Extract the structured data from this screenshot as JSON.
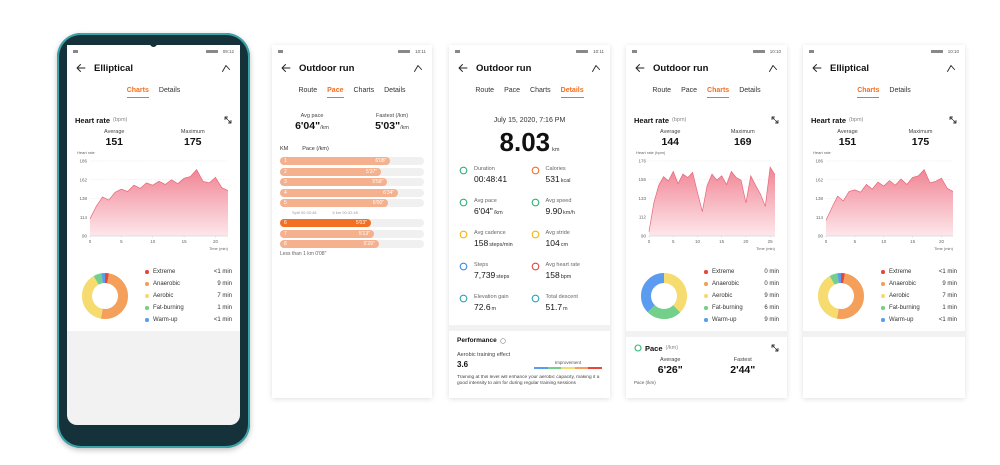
{
  "screens": [
    {
      "status_time": "09:12",
      "title": "Elliptical",
      "tabs": [
        "Charts",
        "Details"
      ],
      "active_tab": 0,
      "heart_rate": {
        "title": "Heart rate",
        "unit": "(bpm)",
        "avg_label": "Average",
        "avg": 151,
        "max_label": "Maximum",
        "max": 175,
        "y_title": "Heart rate",
        "x_title": "Time (min)",
        "ylim": [
          90,
          186
        ],
        "yticks": [
          90,
          114,
          138,
          162,
          186
        ],
        "xlim": [
          0,
          22
        ],
        "xticks": [
          0,
          5,
          10,
          15,
          20
        ],
        "x": [
          0,
          1,
          2,
          3,
          4,
          5,
          6,
          7,
          8,
          9,
          10,
          11,
          12,
          13,
          14,
          15,
          16,
          17,
          18,
          19,
          20,
          21,
          22
        ],
        "values": [
          112,
          128,
          140,
          136,
          146,
          150,
          147,
          155,
          151,
          158,
          155,
          160,
          156,
          162,
          157,
          164,
          166,
          175,
          160,
          158,
          165,
          152,
          148
        ]
      },
      "zones": [
        {
          "name": "Extreme",
          "label": "<1 min",
          "value": 0.5,
          "color": "#e8453c"
        },
        {
          "name": "Anaerobic",
          "label": "9 min",
          "value": 9,
          "color": "#f4a05a"
        },
        {
          "name": "Aerobic",
          "label": "7 min",
          "value": 7,
          "color": "#f6dc6e"
        },
        {
          "name": "Fat-burning",
          "label": "1 min",
          "value": 1,
          "color": "#72d08a"
        },
        {
          "name": "Warm-up",
          "label": "<1 min",
          "value": 0.5,
          "color": "#5b9cf0"
        }
      ]
    },
    {
      "status_time": "10:11",
      "title": "Outdoor run",
      "tabs": [
        "Route",
        "Pace",
        "Charts",
        "Details"
      ],
      "active_tab": 1,
      "summary": [
        {
          "label": "Avg pace",
          "value": "6'04\"",
          "unit": "/km"
        },
        {
          "label": "Fastest (/km)",
          "value": "5'03\"",
          "unit": "/km"
        }
      ],
      "pace_table": {
        "headers": [
          "KM",
          "Pace (/km)"
        ],
        "rows": [
          {
            "km": 1,
            "pace": "6'08\"",
            "seconds": 368
          },
          {
            "km": 2,
            "pace": "5'37\"",
            "seconds": 337
          },
          {
            "km": 3,
            "pace": "5'58\"",
            "seconds": 358
          },
          {
            "km": 4,
            "pace": "6'34\"",
            "seconds": 394
          },
          {
            "km": 5,
            "pace": "6'00\"",
            "seconds": 360
          }
        ],
        "split_note": [
          "Split 00:33:48",
          "6 km 00:32:48"
        ],
        "rows_after": [
          {
            "km": 6,
            "pace": "5'03\"",
            "seconds": 303
          },
          {
            "km": 7,
            "pace": "5'13\"",
            "seconds": 313
          },
          {
            "km": 8,
            "pace": "5'29\"",
            "seconds": 329
          }
        ],
        "footer": "Less than 1 km 0'08\""
      }
    },
    {
      "status_time": "10:11",
      "title": "Outdoor run",
      "tabs": [
        "Route",
        "Pace",
        "Charts",
        "Details"
      ],
      "active_tab": 3,
      "date": "July 15, 2020, 7:16 PM",
      "distance": 8.03,
      "distance_unit": "km",
      "metrics": [
        {
          "label": "Duration",
          "value": "00:48:41"
        },
        {
          "label": "Calories",
          "value": "531",
          "unit": "kcal"
        },
        {
          "label": "Avg pace",
          "value": "6'04\"",
          "unit": "/km"
        },
        {
          "label": "Avg speed",
          "value": "9.90",
          "unit": "km/h"
        },
        {
          "label": "Avg cadence",
          "value": "158",
          "unit": "steps/min"
        },
        {
          "label": "Avg stride",
          "value": "104",
          "unit": "cm"
        },
        {
          "label": "Steps",
          "value": "7,739",
          "unit": "steps"
        },
        {
          "label": "Avg heart rate",
          "value": "158",
          "unit": "bpm"
        },
        {
          "label": "Elevation gain",
          "value": "72.6",
          "unit": "m"
        },
        {
          "label": "Total descent",
          "value": "51.7",
          "unit": "m"
        }
      ],
      "performance": {
        "title": "Performance",
        "effect_label": "Aerobic training effect",
        "effect_value": "3.6",
        "level": "Improvement",
        "description": "Training at this level will enhance your aerobic capacity, making it a good intensity to aim for during regular training sessions"
      }
    },
    {
      "status_time": "10:10",
      "title": "Outdoor run",
      "tabs": [
        "Route",
        "Pace",
        "Charts",
        "Details"
      ],
      "active_tab": 2,
      "heart_rate": {
        "title": "Heart rate",
        "unit": "(bpm)",
        "avg_label": "Average",
        "avg": 144,
        "max_label": "Maximum",
        "max": 169,
        "y_title": "Heart rate (bpm)",
        "x_title": "Time (min)",
        "ylim": [
          90,
          176
        ],
        "yticks": [
          90,
          112,
          133,
          155,
          176
        ],
        "xlim": [
          0,
          26
        ],
        "xticks": [
          0,
          5,
          10,
          15,
          20,
          25
        ],
        "x": [
          0,
          1,
          2,
          3,
          4,
          5,
          6,
          7,
          8,
          9,
          10,
          11,
          12,
          13,
          14,
          15,
          16,
          17,
          18,
          19,
          20,
          21,
          22,
          23,
          24,
          25,
          26
        ],
        "values": [
          95,
          128,
          148,
          158,
          153,
          164,
          150,
          161,
          157,
          163,
          140,
          118,
          148,
          161,
          154,
          159,
          149,
          164,
          157,
          154,
          128,
          159,
          148,
          138,
          124,
          169,
          160
        ]
      },
      "zones": [
        {
          "name": "Extreme",
          "label": "0 min",
          "value": 0,
          "color": "#e8453c"
        },
        {
          "name": "Anaerobic",
          "label": "0 min",
          "value": 0,
          "color": "#f4a05a"
        },
        {
          "name": "Aerobic",
          "label": "9 min",
          "value": 9,
          "color": "#f6dc6e"
        },
        {
          "name": "Fat-burning",
          "label": "6 min",
          "value": 6,
          "color": "#72d08a"
        },
        {
          "name": "Warm-up",
          "label": "9 min",
          "value": 9,
          "color": "#5b9cf0"
        }
      ],
      "pace": {
        "title": "Pace",
        "unit": "(/km)",
        "avg_label": "Average",
        "avg": "6'26\"",
        "max_label": "Fastest",
        "max": "2'44\"",
        "y_title": "Pace (/km)"
      }
    },
    {
      "status_time": "10:10",
      "title": "Elliptical",
      "tabs": [
        "Charts",
        "Details"
      ],
      "active_tab": 0,
      "heart_rate": {
        "title": "Heart rate",
        "unit": "(bpm)",
        "avg_label": "Average",
        "avg": 151,
        "max_label": "Maximum",
        "max": 175,
        "y_title": "Heart rate",
        "x_title": "Time (min)",
        "ylim": [
          90,
          186
        ],
        "yticks": [
          90,
          114,
          138,
          162,
          186
        ],
        "xlim": [
          0,
          22
        ],
        "xticks": [
          0,
          5,
          10,
          15,
          20
        ],
        "x": [
          0,
          1,
          2,
          3,
          4,
          5,
          6,
          7,
          8,
          9,
          10,
          11,
          12,
          13,
          14,
          15,
          16,
          17,
          18,
          19,
          20,
          21,
          22
        ],
        "values": [
          110,
          126,
          141,
          135,
          147,
          149,
          146,
          156,
          150,
          159,
          154,
          161,
          155,
          163,
          156,
          165,
          167,
          175,
          158,
          160,
          164,
          151,
          147
        ]
      },
      "zones": [
        {
          "name": "Extreme",
          "label": "<1 min",
          "value": 0.5,
          "color": "#e8453c"
        },
        {
          "name": "Anaerobic",
          "label": "9 min",
          "value": 9,
          "color": "#f4a05a"
        },
        {
          "name": "Aerobic",
          "label": "7 min",
          "value": 7,
          "color": "#f6dc6e"
        },
        {
          "name": "Fat-burning",
          "label": "1 min",
          "value": 1,
          "color": "#72d08a"
        },
        {
          "name": "Warm-up",
          "label": "<1 min",
          "value": 0.5,
          "color": "#5b9cf0"
        }
      ]
    }
  ]
}
